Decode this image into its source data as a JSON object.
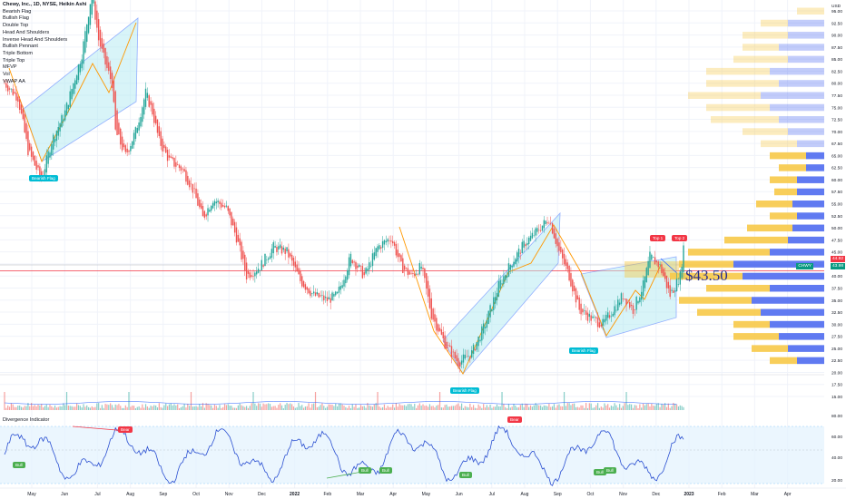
{
  "header": {
    "title": "Chewy, Inc., 1D, NYSE, Heikin Ashi",
    "legend_items": [
      "Bearish Flag",
      "Bullish Flag",
      "Double Top",
      "Head And Shoulders",
      "Inverse Head And Shoulders",
      "Bullish Pennant",
      "Triple Bottom",
      "Triple Top",
      "MFVP",
      "Vol",
      "VWAP AA"
    ]
  },
  "annotations": {
    "big_price": "$43.50",
    "bearish_flag_label": "Bearish Flag",
    "top1": "Top 1",
    "top2": "Top 2",
    "bear_label": "Bear",
    "bull_label": "Bull"
  },
  "price_boxes": {
    "upper": "44.92",
    "ticker": "CHWY",
    "current": "43.98"
  },
  "divergence": {
    "title": "Divergence Indicator"
  },
  "colors": {
    "up": "#26a69a",
    "down": "#ef5350",
    "channel": "#2962ff",
    "channel_fill": "#b2ebf2",
    "zigzag": "#ff9800",
    "hline": "#f23645",
    "vp_yellow": "#f7c948",
    "vp_blue": "#4f6cf0"
  },
  "chart_data": {
    "type": "candlestick",
    "x_ticks": [
      "May",
      "Jun",
      "Jul",
      "Aug",
      "Sep",
      "Oct",
      "Nov",
      "Dec",
      "2022",
      "Feb",
      "Mar",
      "Apr",
      "May",
      "Jun",
      "Jul",
      "Aug",
      "Sep",
      "Oct",
      "Nov",
      "Dec",
      "2023",
      "Feb",
      "Mar",
      "Apr"
    ],
    "y_ticks": [
      "USD",
      "95.00",
      "92.50",
      "90.00",
      "87.50",
      "85.00",
      "82.50",
      "80.00",
      "77.50",
      "75.00",
      "72.50",
      "70.00",
      "67.50",
      "65.00",
      "62.50",
      "60.00",
      "57.50",
      "55.00",
      "52.50",
      "50.00",
      "47.50",
      "45.00",
      "42.50",
      "40.00",
      "37.50",
      "35.00",
      "32.50",
      "30.00",
      "27.50",
      "25.00",
      "22.50",
      "20.00",
      "17.50",
      "15.00"
    ],
    "osc_ticks": [
      "80.00",
      "60.00",
      "40.00",
      "20.00"
    ],
    "path": [
      [
        0,
        80
      ],
      [
        8,
        77
      ],
      [
        14,
        66
      ],
      [
        22,
        60
      ],
      [
        28,
        68
      ],
      [
        36,
        74
      ],
      [
        46,
        86
      ],
      [
        52,
        99
      ],
      [
        56,
        89
      ],
      [
        60,
        84
      ],
      [
        64,
        80
      ],
      [
        66,
        70
      ],
      [
        72,
        65
      ],
      [
        78,
        70
      ],
      [
        84,
        78
      ],
      [
        88,
        74
      ],
      [
        92,
        68
      ],
      [
        98,
        64
      ],
      [
        106,
        62
      ],
      [
        112,
        58
      ],
      [
        118,
        52
      ],
      [
        124,
        56
      ],
      [
        132,
        54
      ],
      [
        138,
        48
      ],
      [
        144,
        40
      ],
      [
        152,
        42
      ],
      [
        160,
        46
      ],
      [
        168,
        45
      ],
      [
        176,
        39
      ],
      [
        184,
        36
      ],
      [
        192,
        35
      ],
      [
        198,
        36
      ],
      [
        206,
        44
      ],
      [
        214,
        40
      ],
      [
        222,
        46
      ],
      [
        230,
        48
      ],
      [
        236,
        42
      ],
      [
        242,
        40
      ],
      [
        248,
        42
      ],
      [
        254,
        32
      ],
      [
        262,
        26
      ],
      [
        270,
        22
      ],
      [
        278,
        24
      ],
      [
        286,
        30
      ],
      [
        294,
        38
      ],
      [
        302,
        43
      ],
      [
        310,
        47
      ],
      [
        316,
        49
      ],
      [
        324,
        52
      ],
      [
        330,
        45
      ],
      [
        336,
        40
      ],
      [
        342,
        33
      ],
      [
        350,
        31
      ],
      [
        356,
        30
      ],
      [
        362,
        33
      ],
      [
        368,
        36
      ],
      [
        374,
        33
      ],
      [
        380,
        38
      ],
      [
        384,
        44
      ],
      [
        390,
        42
      ],
      [
        396,
        36
      ],
      [
        402,
        40
      ],
      [
        404,
        46
      ]
    ]
  }
}
